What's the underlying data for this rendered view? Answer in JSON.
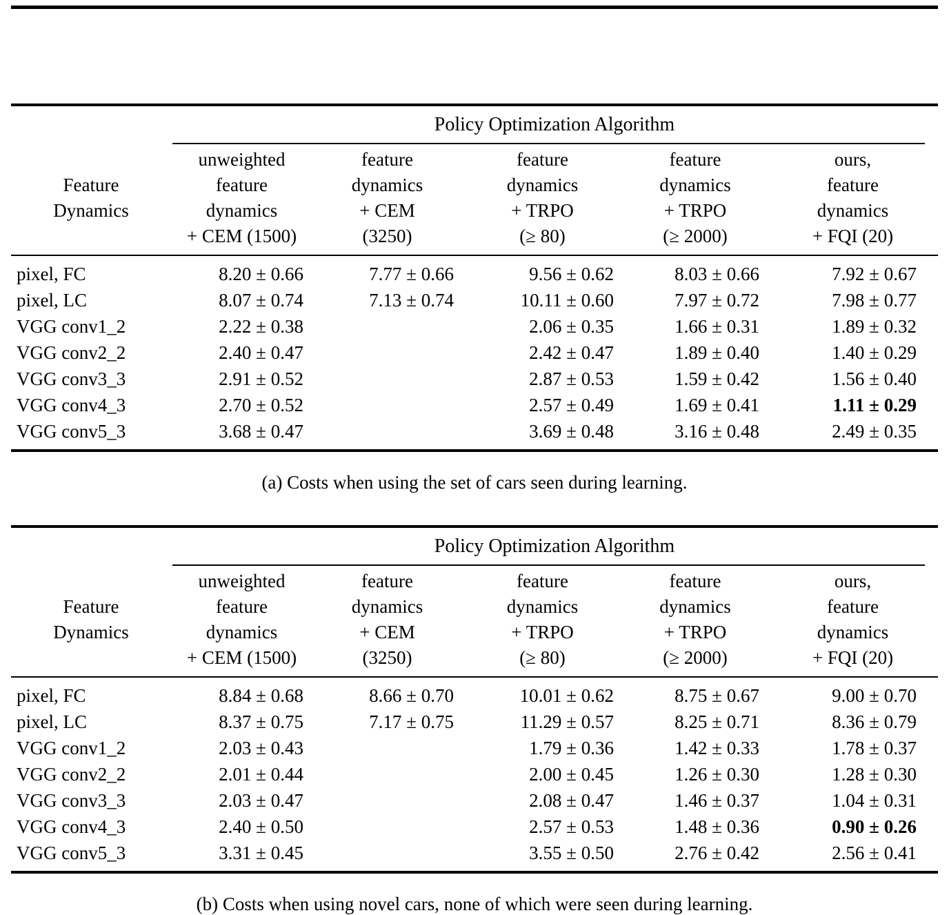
{
  "colors": {
    "text": "#000000",
    "rule": "#000000",
    "background": "#ffffff"
  },
  "tables": {
    "a": {
      "group_header": "Policy Optimization Algorithm",
      "row_header": "Feature\nDynamics",
      "col_headers": [
        "unweighted\nfeature\ndynamics\n+ CEM (1500)",
        "feature\ndynamics\n+ CEM\n(3250)",
        "feature\ndynamics\n+ TRPO\n(≥ 80)",
        "feature\ndynamics\n+ TRPO\n(≥ 2000)",
        "ours,\nfeature\ndynamics\n+ FQI (20)"
      ],
      "rows": [
        {
          "label": "pixel, FC",
          "values": [
            "8.20 ± 0.66",
            "7.77 ± 0.66",
            "9.56 ± 0.62",
            "8.03 ± 0.66",
            "7.92 ± 0.67"
          ]
        },
        {
          "label": "pixel, LC",
          "values": [
            "8.07 ± 0.74",
            "7.13 ± 0.74",
            "10.11 ± 0.60",
            "7.97 ± 0.72",
            "7.98 ± 0.77"
          ]
        },
        {
          "label": "VGG conv1_2",
          "values": [
            "2.22 ± 0.38",
            "",
            "2.06 ± 0.35",
            "1.66 ± 0.31",
            "1.89 ± 0.32"
          ]
        },
        {
          "label": "VGG conv2_2",
          "values": [
            "2.40 ± 0.47",
            "",
            "2.42 ± 0.47",
            "1.89 ± 0.40",
            "1.40 ± 0.29"
          ]
        },
        {
          "label": "VGG conv3_3",
          "values": [
            "2.91 ± 0.52",
            "",
            "2.87 ± 0.53",
            "1.59 ± 0.42",
            "1.56 ± 0.40"
          ]
        },
        {
          "label": "VGG conv4_3",
          "values": [
            "2.70 ± 0.52",
            "",
            "2.57 ± 0.49",
            "1.69 ± 0.41",
            "1.11 ± 0.29"
          ]
        },
        {
          "label": "VGG conv5_3",
          "values": [
            "3.68 ± 0.47",
            "",
            "3.69 ± 0.48",
            "3.16 ± 0.48",
            "2.49 ± 0.35"
          ]
        }
      ],
      "caption": "(a) Costs when using the set of cars seen during learning."
    },
    "b": {
      "group_header": "Policy Optimization Algorithm",
      "row_header": "Feature\nDynamics",
      "col_headers": [
        "unweighted\nfeature\ndynamics\n+ CEM (1500)",
        "feature\ndynamics\n+ CEM\n(3250)",
        "feature\ndynamics\n+ TRPO\n(≥ 80)",
        "feature\ndynamics\n+ TRPO\n(≥ 2000)",
        "ours,\nfeature\ndynamics\n+ FQI (20)"
      ],
      "rows": [
        {
          "label": "pixel, FC",
          "values": [
            "8.84 ± 0.68",
            "8.66 ± 0.70",
            "10.01 ± 0.62",
            "8.75 ± 0.67",
            "9.00 ± 0.70"
          ]
        },
        {
          "label": "pixel, LC",
          "values": [
            "8.37 ± 0.75",
            "7.17 ± 0.75",
            "11.29 ± 0.57",
            "8.25 ± 0.71",
            "8.36 ± 0.79"
          ]
        },
        {
          "label": "VGG conv1_2",
          "values": [
            "2.03 ± 0.43",
            "",
            "1.79 ± 0.36",
            "1.42 ± 0.33",
            "1.78 ± 0.37"
          ]
        },
        {
          "label": "VGG conv2_2",
          "values": [
            "2.01 ± 0.44",
            "",
            "2.00 ± 0.45",
            "1.26 ± 0.30",
            "1.28 ± 0.30"
          ]
        },
        {
          "label": "VGG conv3_3",
          "values": [
            "2.03 ± 0.47",
            "",
            "2.08 ± 0.47",
            "1.46 ± 0.37",
            "1.04 ± 0.31"
          ]
        },
        {
          "label": "VGG conv4_3",
          "values": [
            "2.40 ± 0.50",
            "",
            "2.57 ± 0.53",
            "1.48 ± 0.36",
            "0.90 ± 0.26"
          ]
        },
        {
          "label": "VGG conv5_3",
          "values": [
            "3.31 ± 0.45",
            "",
            "3.55 ± 0.50",
            "2.76 ± 0.42",
            "2.56 ± 0.41"
          ]
        }
      ],
      "caption": "(b) Costs when using novel cars, none of which were seen during learning."
    }
  }
}
